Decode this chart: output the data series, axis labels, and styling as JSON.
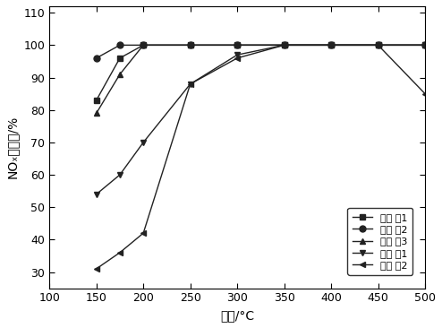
{
  "title": "",
  "xlabel": "温度/°C",
  "ylabel": "NOₓ转化率/%",
  "xlim": [
    100,
    500
  ],
  "ylim": [
    25,
    112
  ],
  "xticks": [
    100,
    150,
    200,
    250,
    300,
    350,
    400,
    450,
    500
  ],
  "yticks": [
    30,
    40,
    50,
    60,
    70,
    80,
    90,
    100,
    110
  ],
  "series": [
    {
      "label": "实施 例1",
      "x": [
        150,
        175,
        200,
        250,
        300,
        350,
        400,
        450,
        500
      ],
      "y": [
        83,
        96,
        100,
        100,
        100,
        100,
        100,
        100,
        100
      ],
      "marker": "s",
      "color": "#222222",
      "linestyle": "-"
    },
    {
      "label": "实施 例2",
      "x": [
        150,
        175,
        200,
        250,
        300,
        350,
        400,
        450,
        500
      ],
      "y": [
        96,
        100,
        100,
        100,
        100,
        100,
        100,
        100,
        100
      ],
      "marker": "o",
      "color": "#222222",
      "linestyle": "-"
    },
    {
      "label": "实施 例3",
      "x": [
        150,
        175,
        200,
        250,
        300,
        350,
        400,
        450,
        500
      ],
      "y": [
        79,
        91,
        100,
        100,
        100,
        100,
        100,
        100,
        100
      ],
      "marker": "^",
      "color": "#222222",
      "linestyle": "-"
    },
    {
      "label": "对比 例1",
      "x": [
        150,
        175,
        200,
        250,
        300,
        350,
        400,
        450,
        500
      ],
      "y": [
        54,
        60,
        70,
        88,
        97,
        100,
        100,
        100,
        100
      ],
      "marker": "v",
      "color": "#222222",
      "linestyle": "-"
    },
    {
      "label": "对比 例2",
      "x": [
        150,
        175,
        200,
        250,
        300,
        350,
        400,
        450,
        500
      ],
      "y": [
        31,
        36,
        42,
        88,
        96,
        100,
        100,
        100,
        85
      ],
      "marker": "<",
      "color": "#222222",
      "linestyle": "-"
    }
  ],
  "legend_loc": "lower right",
  "background_color": "#ffffff",
  "marker_styles": [
    "s",
    "o",
    "^",
    "v",
    "<"
  ]
}
